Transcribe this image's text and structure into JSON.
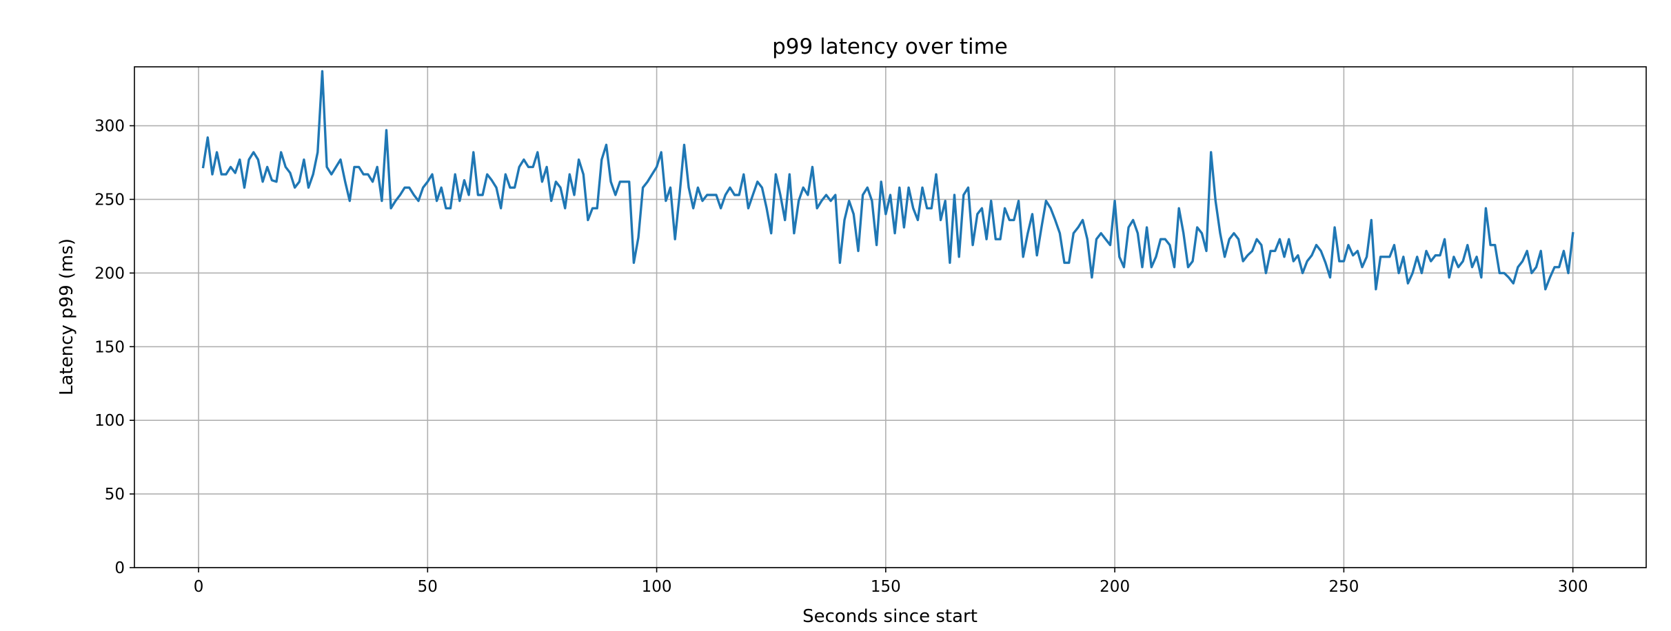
{
  "chart_data": {
    "type": "line",
    "title": "p99 latency over time",
    "xlabel": "Seconds since start",
    "ylabel": "Latency p99 (ms)",
    "xlim": [
      -14,
      316
    ],
    "ylim": [
      0,
      340
    ],
    "xticks": [
      0,
      50,
      100,
      150,
      200,
      250,
      300
    ],
    "yticks": [
      0,
      50,
      100,
      150,
      200,
      250,
      300
    ],
    "grid": true,
    "legend": "none",
    "colors": {
      "line": "#1f77b4",
      "grid": "#b0b0b0",
      "axes": "#000000"
    },
    "series": [
      {
        "x": [
          1,
          2,
          3,
          4,
          5,
          6,
          7,
          8,
          9,
          10,
          11,
          12,
          13,
          14,
          15,
          16,
          17,
          18,
          19,
          20,
          21,
          22,
          23,
          24,
          25,
          26,
          27,
          28,
          29,
          30,
          31,
          32,
          33,
          34,
          35,
          36,
          37,
          38,
          39,
          40,
          41,
          42,
          43,
          44,
          45,
          46,
          47,
          48,
          49,
          50,
          51,
          52,
          53,
          54,
          55,
          56,
          57,
          58,
          59,
          60,
          61,
          62,
          63,
          64,
          65,
          66,
          67,
          68,
          69,
          70,
          71,
          72,
          73,
          74,
          75,
          76,
          77,
          78,
          79,
          80,
          81,
          82,
          83,
          84,
          85,
          86,
          87,
          88,
          89,
          90,
          91,
          92,
          93,
          94,
          95,
          96,
          97,
          98,
          99,
          100,
          101,
          102,
          103,
          104,
          105,
          106,
          107,
          108,
          109,
          110,
          111,
          112,
          113,
          114,
          115,
          116,
          117,
          118,
          119,
          120,
          121,
          122,
          123,
          124,
          125,
          126,
          127,
          128,
          129,
          130,
          131,
          132,
          133,
          134,
          135,
          136,
          137,
          138,
          139,
          140,
          141,
          142,
          143,
          144,
          145,
          146,
          147,
          148,
          149,
          150,
          151,
          152,
          153,
          154,
          155,
          156,
          157,
          158,
          159,
          160,
          161,
          162,
          163,
          164,
          165,
          166,
          167,
          168,
          169,
          170,
          171,
          172,
          173,
          174,
          175,
          176,
          177,
          178,
          179,
          180,
          181,
          182,
          183,
          184,
          185,
          186,
          187,
          188,
          189,
          190,
          191,
          192,
          193,
          194,
          195,
          196,
          197,
          198,
          199,
          200,
          201,
          202,
          203,
          204,
          205,
          206,
          207,
          208,
          209,
          210,
          211,
          212,
          213,
          214,
          215,
          216,
          217,
          218,
          219,
          220,
          221,
          222,
          223,
          224,
          225,
          226,
          227,
          228,
          229,
          230,
          231,
          232,
          233,
          234,
          235,
          236,
          237,
          238,
          239,
          240,
          241,
          242,
          243,
          244,
          245,
          246,
          247,
          248,
          249,
          250,
          251,
          252,
          253,
          254,
          255,
          256,
          257,
          258,
          259,
          260,
          261,
          262,
          263,
          264,
          265,
          266,
          267,
          268,
          269,
          270,
          271,
          272,
          273,
          274,
          275,
          276,
          277,
          278,
          279,
          280,
          281,
          282,
          283,
          284,
          285,
          286,
          287,
          288,
          289,
          290,
          291,
          292,
          293,
          294,
          295,
          296,
          297,
          298,
          299,
          300
        ],
        "y": [
          272,
          292,
          267,
          282,
          267,
          267,
          272,
          268,
          277,
          258,
          277,
          282,
          277,
          262,
          272,
          263,
          262,
          282,
          272,
          268,
          258,
          262,
          277,
          258,
          267,
          282,
          337,
          272,
          267,
          272,
          277,
          262,
          249,
          272,
          272,
          267,
          267,
          262,
          272,
          249,
          297,
          244,
          249,
          253,
          258,
          258,
          253,
          249,
          258,
          262,
          267,
          249,
          258,
          244,
          244,
          267,
          249,
          263,
          253,
          282,
          253,
          253,
          267,
          263,
          258,
          244,
          267,
          258,
          258,
          272,
          277,
          272,
          272,
          282,
          262,
          272,
          249,
          262,
          258,
          244,
          267,
          253,
          277,
          267,
          236,
          244,
          244,
          277,
          287,
          262,
          253,
          262,
          262,
          262,
          207,
          224,
          258,
          262,
          267,
          272,
          282,
          249,
          258,
          223,
          253,
          287,
          258,
          244,
          258,
          249,
          253,
          253,
          253,
          244,
          253,
          258,
          253,
          253,
          267,
          244,
          253,
          262,
          258,
          244,
          227,
          267,
          253,
          236,
          267,
          227,
          249,
          258,
          253,
          272,
          244,
          249,
          253,
          249,
          253,
          207,
          236,
          249,
          240,
          215,
          253,
          258,
          249,
          219,
          262,
          240,
          253,
          227,
          258,
          231,
          258,
          244,
          236,
          258,
          244,
          244,
          267,
          236,
          249,
          207,
          253,
          211,
          253,
          258,
          219,
          240,
          244,
          223,
          249,
          223,
          223,
          244,
          236,
          236,
          249,
          211,
          227,
          240,
          212,
          231,
          249,
          244,
          236,
          227,
          207,
          207,
          227,
          231,
          236,
          223,
          197,
          223,
          227,
          223,
          219,
          249,
          211,
          204,
          231,
          236,
          227,
          204,
          231,
          204,
          211,
          223,
          223,
          219,
          204,
          244,
          227,
          204,
          208,
          231,
          227,
          215,
          282,
          249,
          227,
          211,
          223,
          227,
          223,
          208,
          212,
          215,
          223,
          219,
          200,
          215,
          215,
          223,
          211,
          223,
          208,
          212,
          200,
          208,
          212,
          219,
          215,
          207,
          197,
          231,
          208,
          208,
          219,
          212,
          215,
          204,
          211,
          236,
          189,
          211,
          211,
          211,
          219,
          200,
          211,
          193,
          200,
          211,
          200,
          215,
          208,
          212,
          212,
          223,
          197,
          211,
          204,
          208,
          219,
          204,
          211,
          197,
          244,
          219,
          219,
          200,
          200,
          197,
          193,
          204,
          208,
          215,
          200,
          204,
          215,
          189,
          197,
          204,
          204,
          215,
          200,
          227
        ]
      }
    ]
  }
}
